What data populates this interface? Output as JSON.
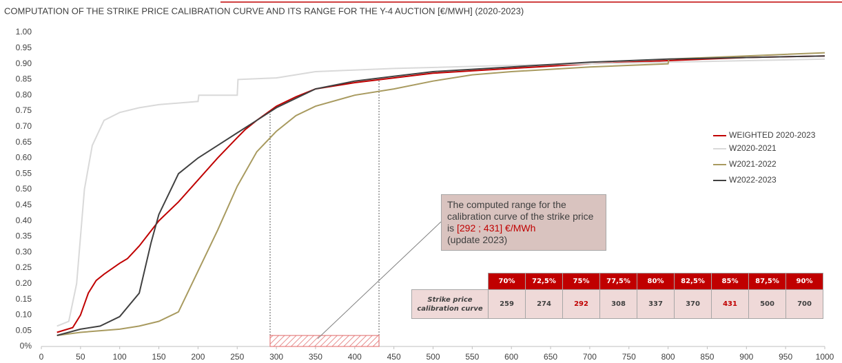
{
  "chart_data": {
    "type": "line",
    "title": "COMPUTATION OF THE STRIKE PRICE CALIBRATION CURVE AND ITS RANGE FOR THE Y-4 AUCTION [€/MWH] (2020-2023)",
    "xlim": [
      0,
      1000
    ],
    "xticks": [
      0,
      50,
      100,
      150,
      200,
      250,
      300,
      350,
      400,
      450,
      500,
      550,
      600,
      650,
      700,
      750,
      800,
      850,
      900,
      950,
      1000
    ],
    "ylim": [
      0,
      1
    ],
    "yticks": [
      {
        "value": 1,
        "label": "1.00"
      },
      {
        "value": 0.95,
        "label": "0.95"
      },
      {
        "value": 0.9,
        "label": "0.90"
      },
      {
        "value": 0.85,
        "label": "0.85"
      },
      {
        "value": 0.8,
        "label": "0.80"
      },
      {
        "value": 0.75,
        "label": "0.75"
      },
      {
        "value": 0.7,
        "label": "0.70"
      },
      {
        "value": 0.65,
        "label": "0.65"
      },
      {
        "value": 0.6,
        "label": "0.60"
      },
      {
        "value": 0.55,
        "label": "0.55"
      },
      {
        "value": 0.5,
        "label": "0.50"
      },
      {
        "value": 0.45,
        "label": "0.45"
      },
      {
        "value": 0.4,
        "label": "0.40"
      },
      {
        "value": 0.35,
        "label": "0.35"
      },
      {
        "value": 0.3,
        "label": "0.30"
      },
      {
        "value": 0.25,
        "label": "0.25"
      },
      {
        "value": 0.2,
        "label": "0.20"
      },
      {
        "value": 0.15,
        "label": "0.15"
      },
      {
        "value": 0.1,
        "label": "0.10"
      },
      {
        "value": 0.05,
        "label": "0.05"
      },
      {
        "value": 0,
        "label": "0%"
      }
    ],
    "grid": false,
    "legend": "right",
    "series": [
      {
        "name": "WEIGHTED 2020-2023",
        "color": "#c00000",
        "x": [
          20,
          40,
          50,
          60,
          70,
          80,
          100,
          110,
          125,
          150,
          175,
          200,
          225,
          250,
          260,
          275,
          300,
          325,
          350,
          400,
          450,
          500,
          600,
          700,
          800,
          900,
          1000
        ],
        "values": [
          0.045,
          0.06,
          0.1,
          0.17,
          0.21,
          0.23,
          0.265,
          0.28,
          0.32,
          0.4,
          0.46,
          0.53,
          0.6,
          0.665,
          0.69,
          0.72,
          0.765,
          0.795,
          0.82,
          0.84,
          0.855,
          0.87,
          0.885,
          0.9,
          0.91,
          0.92,
          0.925
        ]
      },
      {
        "name": "W2020-2021",
        "color": "#d9d9d9",
        "x": [
          20,
          35,
          45,
          55,
          65,
          80,
          100,
          125,
          150,
          200,
          201,
          250,
          251,
          300,
          350,
          450,
          600,
          800,
          1000
        ],
        "values": [
          0.065,
          0.08,
          0.2,
          0.5,
          0.64,
          0.72,
          0.745,
          0.76,
          0.77,
          0.78,
          0.8,
          0.8,
          0.85,
          0.855,
          0.875,
          0.885,
          0.895,
          0.905,
          0.915
        ]
      },
      {
        "name": "W2021-2022",
        "color": "#a89a5f",
        "x": [
          20,
          50,
          100,
          125,
          150,
          175,
          200,
          225,
          250,
          275,
          300,
          325,
          350,
          400,
          450,
          500,
          550,
          600,
          700,
          800,
          801,
          1000
        ],
        "values": [
          0.035,
          0.045,
          0.055,
          0.065,
          0.08,
          0.11,
          0.24,
          0.37,
          0.51,
          0.62,
          0.685,
          0.735,
          0.765,
          0.8,
          0.82,
          0.845,
          0.865,
          0.875,
          0.89,
          0.9,
          0.915,
          0.935
        ]
      },
      {
        "name": "W2022-2023",
        "color": "#404040",
        "x": [
          20,
          50,
          75,
          100,
          125,
          140,
          150,
          175,
          200,
          225,
          250,
          275,
          300,
          350,
          400,
          450,
          500,
          600,
          700,
          800,
          1000
        ],
        "values": [
          0.035,
          0.055,
          0.065,
          0.095,
          0.17,
          0.33,
          0.42,
          0.55,
          0.6,
          0.64,
          0.68,
          0.72,
          0.76,
          0.82,
          0.845,
          0.86,
          0.875,
          0.89,
          0.905,
          0.915,
          0.925
        ]
      }
    ],
    "annotation": {
      "text": "The computed range for the calibration curve of the strike price is ",
      "highlight": "[292 ; 431] €/MWh",
      "note": "(update 2023)"
    },
    "table": {
      "header": [
        "70%",
        "72,5%",
        "75%",
        "77,5%",
        "80%",
        "82,5%",
        "85%",
        "87,5%",
        "90%"
      ],
      "row_label": "Strike price calibration curve",
      "values": [
        259,
        274,
        292,
        308,
        337,
        370,
        431,
        500,
        700
      ],
      "highlight_columns": [
        2,
        6
      ]
    }
  }
}
